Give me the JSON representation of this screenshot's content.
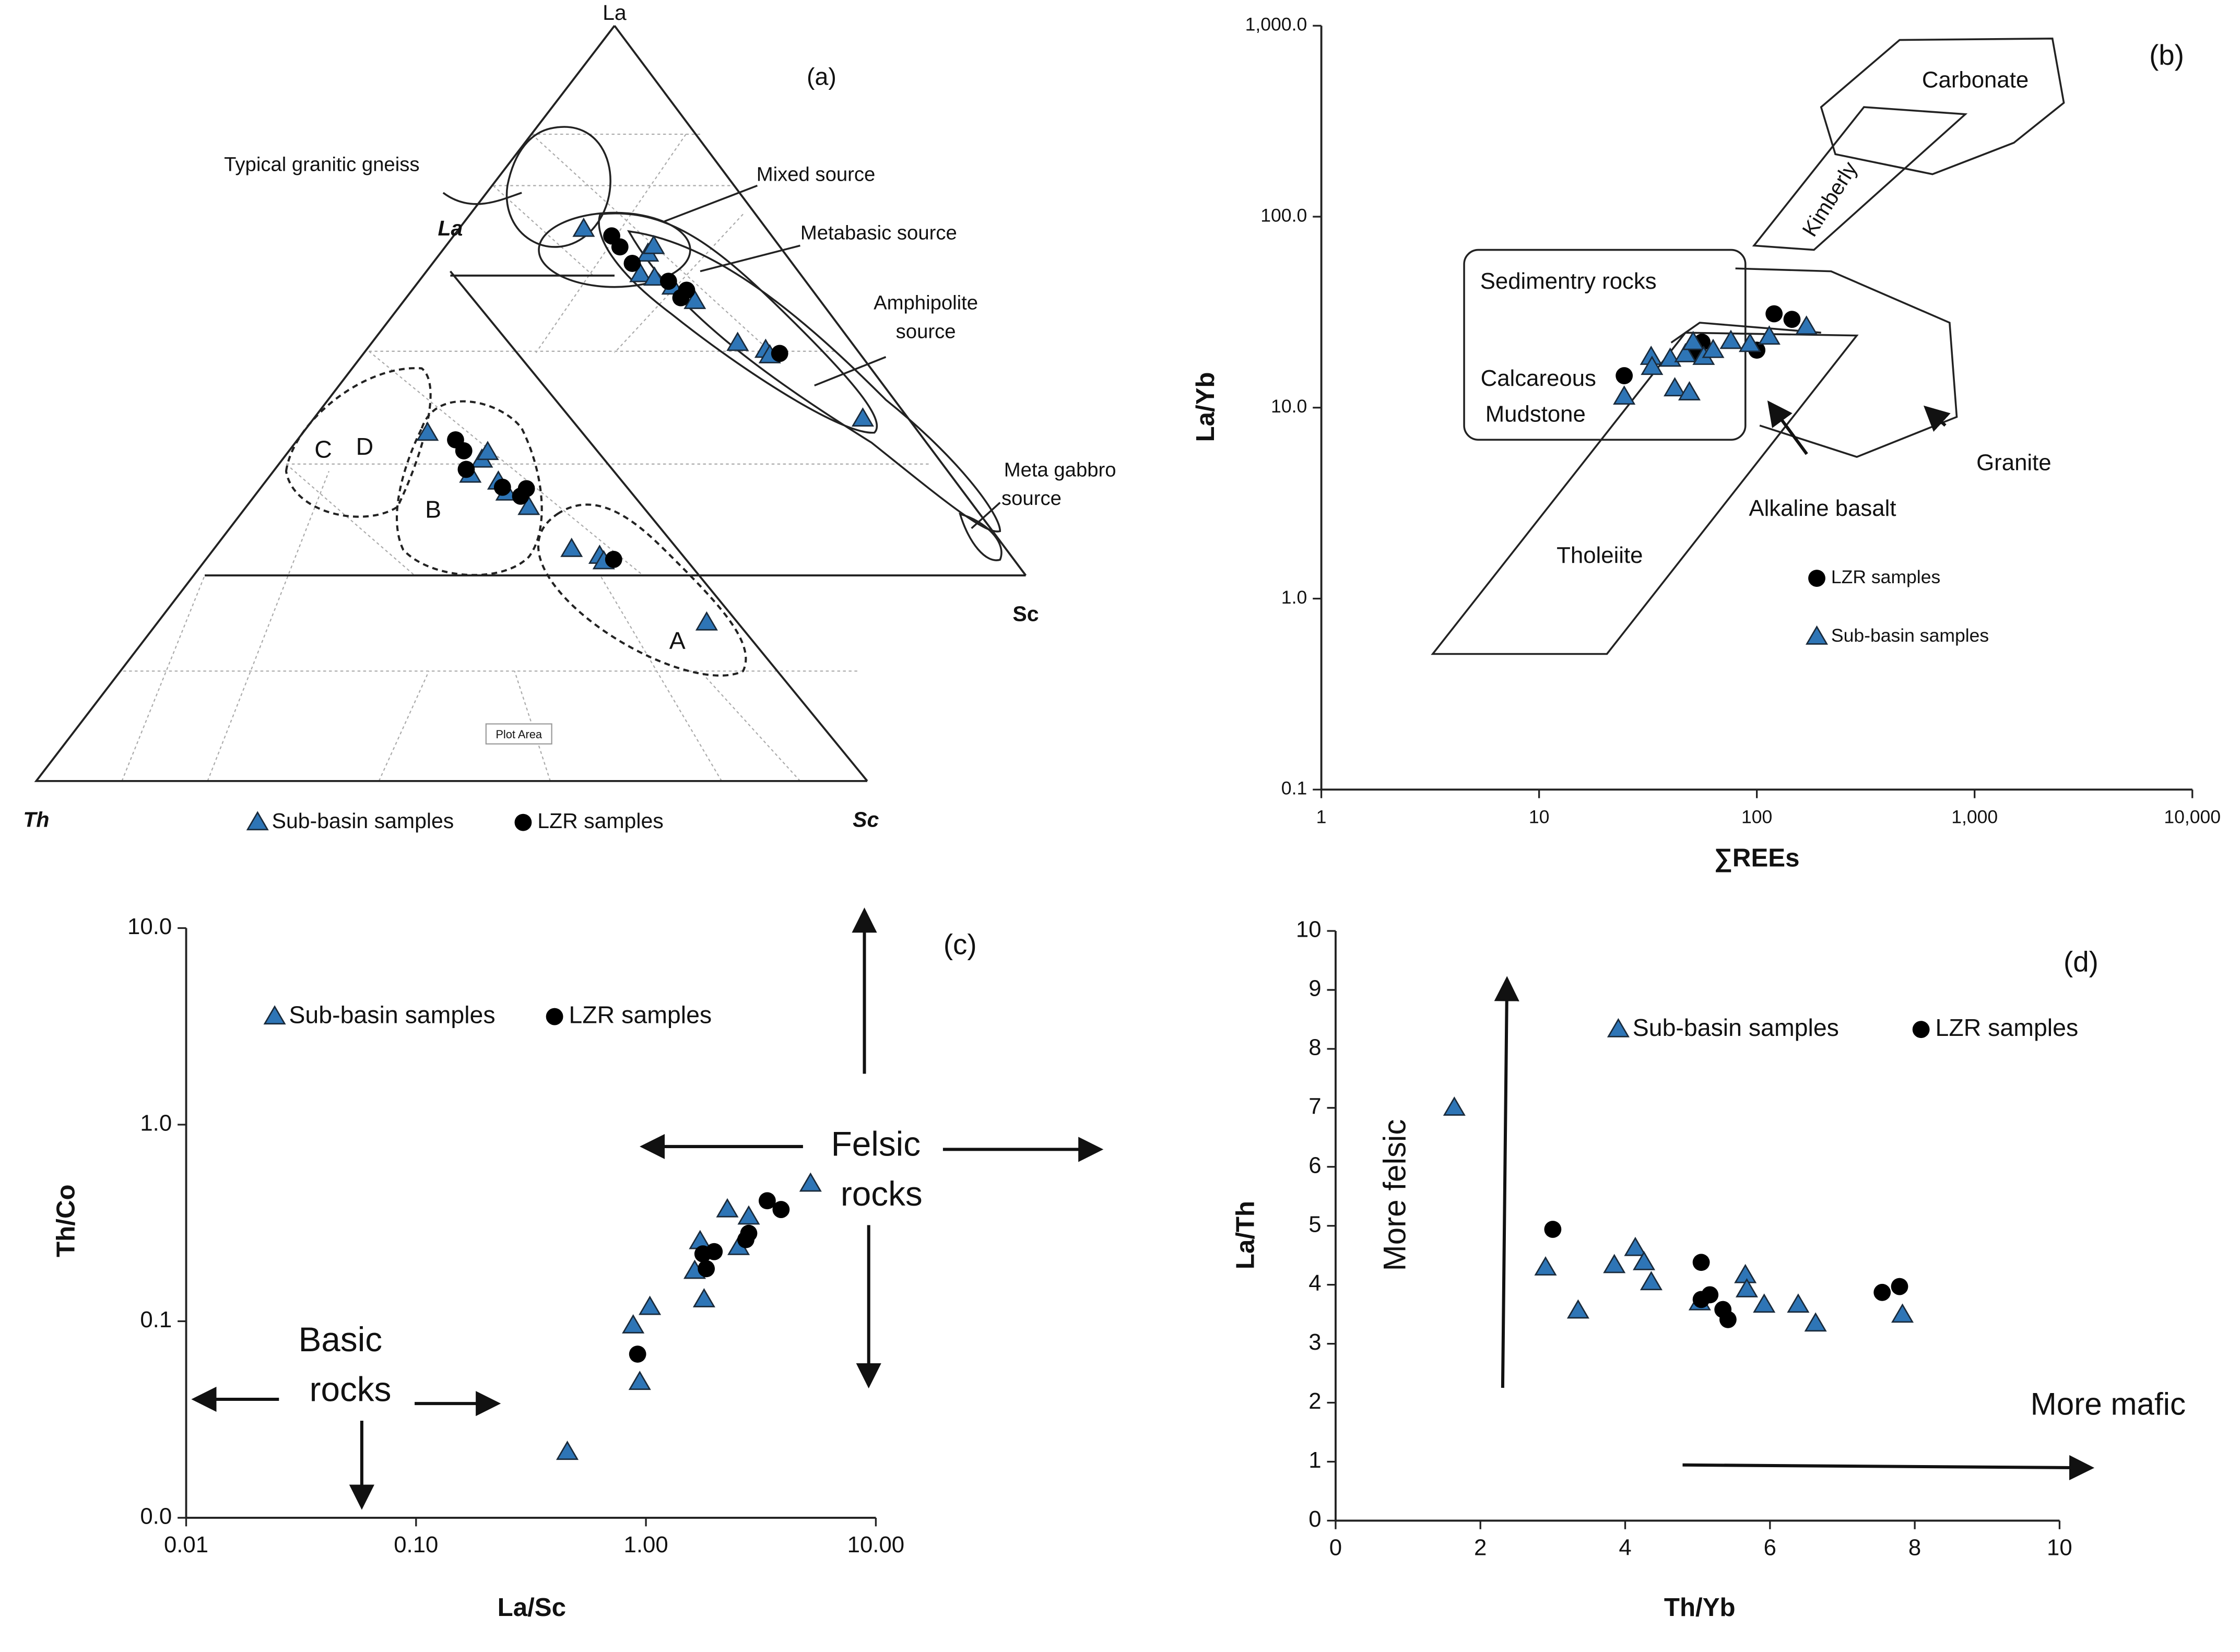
{
  "chart_data": [
    {
      "type": "ternary",
      "title": "(a)",
      "vertices": [
        "La",
        "Th",
        "Sc"
      ],
      "inner_vertex_labels": [
        "La",
        "Sc"
      ],
      "annotations": [
        "Typical granitic gneiss",
        "Mixed source",
        "Metabasic source",
        "Amphipolite",
        "source",
        "Meta gabbro",
        "source",
        "C",
        "D",
        "B",
        "A",
        "Plot Area"
      ],
      "series": [
        {
          "name": "Sub-basin samples",
          "color": "#2e75b6",
          "marker": "triangle",
          "values": [
            [
              69,
              16,
              15
            ],
            [
              63,
              12,
              25
            ],
            [
              64,
              11,
              25
            ],
            [
              60,
              14,
              26
            ],
            [
              59,
              13,
              28
            ],
            [
              57,
              12,
              31
            ],
            [
              54,
              11,
              35
            ],
            [
              46,
              10,
              44
            ],
            [
              44,
              8,
              48
            ],
            [
              43,
              8,
              49
            ],
            [
              30,
              4,
              66
            ],
            [
              42,
              43,
              15
            ],
            [
              34,
              42,
              24
            ],
            [
              36,
              40,
              24
            ],
            [
              37,
              39,
              24
            ],
            [
              32,
              40,
              28
            ],
            [
              30,
              40,
              30
            ],
            [
              27,
              39,
              34
            ],
            [
              19,
              38,
              43
            ],
            [
              17,
              36,
              47
            ],
            [
              16,
              36,
              48
            ],
            [
              3,
              31,
              66
            ]
          ]
        },
        {
          "name": "LZR samples",
          "color": "#000000",
          "marker": "circle",
          "values": [
            [
              67,
              14,
              19
            ],
            [
              65,
              14,
              21
            ],
            [
              62,
              14,
              24
            ],
            [
              58,
              12,
              30
            ],
            [
              55,
              12,
              33
            ],
            [
              56,
              11,
              33
            ],
            [
              43,
              7,
              50
            ],
            [
              40,
              41,
              19
            ],
            [
              38,
              41,
              21
            ],
            [
              35,
              42,
              23
            ],
            [
              31,
              40,
              29
            ],
            [
              29,
              39,
              32
            ],
            [
              30,
              38,
              32
            ],
            [
              16,
              35,
              49
            ]
          ]
        }
      ]
    },
    {
      "type": "scatter",
      "title": "(b)",
      "xlabel": "∑REEs",
      "ylabel": "La/Yb",
      "xscale": "log",
      "yscale": "log",
      "xlim": [
        1,
        10000
      ],
      "ylim": [
        0.1,
        1000
      ],
      "xticks": [
        1,
        10,
        100,
        {
          "value": 1000,
          "label": "1,000"
        },
        {
          "value": 10000,
          "label": "10,000"
        }
      ],
      "yticks": [
        0.1,
        {
          "value": 1,
          "label": "1.0"
        },
        {
          "value": 10,
          "label": "10.0"
        },
        {
          "value": 100,
          "label": "100.0"
        },
        {
          "value": 1000,
          "label": "1,000.0"
        }
      ],
      "annotations": [
        "Carbonate",
        "Kimberly",
        "Sedimentry rocks",
        "Calcareous",
        "Mudstone",
        "Tholeiite",
        "Alkaline basalt",
        "Granite"
      ],
      "series": [
        {
          "name": "LZR samples",
          "color": "#000000",
          "marker": "circle",
          "x": [
            24.6,
            50,
            56,
            53,
            100,
            120,
            145
          ],
          "values": [
            14.7,
            20,
            22,
            19,
            20,
            31,
            29
          ]
        },
        {
          "name": "Sub-basin samples",
          "color": "#2e75b6",
          "marker": "triangle",
          "x": [
            24.6,
            32.7,
            33,
            40,
            42,
            49,
            47,
            51,
            57,
            63,
            76,
            93,
            114,
            169
          ],
          "values": [
            11.4,
            18.4,
            16.3,
            18,
            12.6,
            12,
            19,
            22,
            18.4,
            20,
            22.3,
            21.5,
            23.5,
            26.5
          ]
        }
      ]
    },
    {
      "type": "scatter",
      "title": "(c)",
      "xlabel": "La/Sc",
      "ylabel": "Th/Co",
      "xscale": "log",
      "yscale": "log",
      "xlim": [
        0.01,
        10
      ],
      "ylim": [
        0.01,
        10
      ],
      "xticks": [
        0.01,
        {
          "value": 0.1,
          "label": "0.10"
        },
        {
          "value": 1,
          "label": "1.00"
        },
        {
          "value": 10,
          "label": "10.00"
        }
      ],
      "yticks": [
        {
          "value": 0.01,
          "label": "0.0"
        },
        0.1,
        {
          "value": 1,
          "label": "1.0"
        },
        {
          "value": 10,
          "label": "10.0"
        }
      ],
      "annotations": [
        "Felsic",
        "rocks",
        "Basic",
        "rocks"
      ],
      "series": [
        {
          "name": "Sub-basin samples",
          "color": "#2e75b6",
          "marker": "triangle",
          "x": [
            0.455,
            0.88,
            0.94,
            1.04,
            1.63,
            1.72,
            1.79,
            2.26,
            2.53,
            2.8,
            5.2
          ],
          "values": [
            0.0216,
            0.095,
            0.049,
            0.118,
            0.18,
            0.255,
            0.129,
            0.37,
            0.238,
            0.34,
            0.5
          ]
        },
        {
          "name": "LZR samples",
          "color": "#000000",
          "marker": "circle",
          "x": [
            0.92,
            1.77,
            1.83,
            1.98,
            2.72,
            2.8,
            3.37,
            3.87
          ],
          "values": [
            0.068,
            0.22,
            0.185,
            0.226,
            0.26,
            0.28,
            0.41,
            0.37
          ]
        }
      ]
    },
    {
      "type": "scatter",
      "title": "(d)",
      "xlabel": "Th/Yb",
      "ylabel": "La/Th",
      "xlim": [
        0,
        10
      ],
      "ylim": [
        0,
        10
      ],
      "xticks": [
        0,
        2,
        4,
        6,
        8,
        10
      ],
      "yticks": [
        0,
        1,
        2,
        3,
        4,
        5,
        6,
        7,
        8,
        9,
        10
      ],
      "annotations": [
        "More felsic",
        "More mafic"
      ],
      "series": [
        {
          "name": "Sub-basin samples",
          "color": "#2e75b6",
          "marker": "triangle",
          "x": [
            1.64,
            2.9,
            3.35,
            3.85,
            4.14,
            4.26,
            4.36,
            5.03,
            5.66,
            5.68,
            5.92,
            6.39,
            6.63,
            7.83
          ],
          "values": [
            7.0,
            4.29,
            3.56,
            4.33,
            4.62,
            4.38,
            4.04,
            3.7,
            4.16,
            3.92,
            3.66,
            3.66,
            3.34,
            3.49
          ]
        },
        {
          "name": "LZR samples",
          "color": "#000000",
          "marker": "circle",
          "x": [
            3.0,
            5.05,
            5.05,
            5.17,
            5.35,
            5.42,
            7.55,
            7.79
          ],
          "values": [
            4.94,
            4.38,
            3.75,
            3.83,
            3.58,
            3.41,
            3.87,
            3.97
          ]
        }
      ]
    }
  ]
}
